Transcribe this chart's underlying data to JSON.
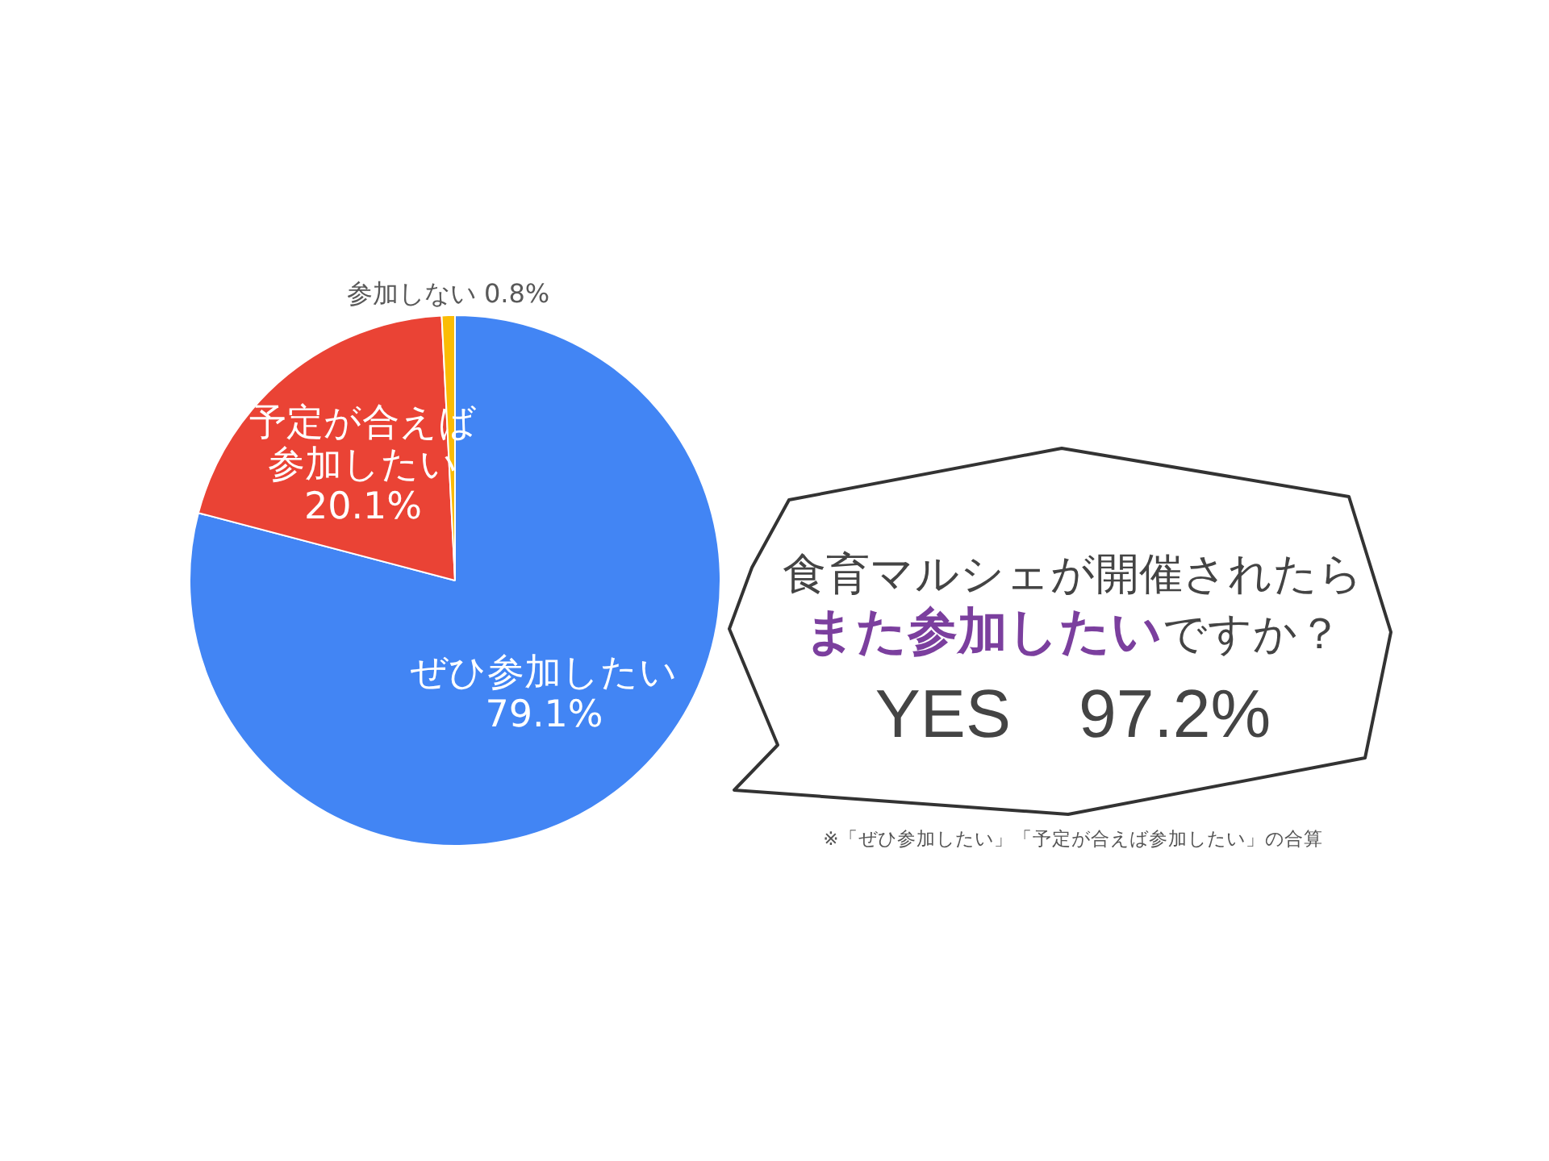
{
  "chart_data": {
    "type": "pie",
    "categories": [
      "ぜひ参加したい",
      "予定が合えば参加したい",
      "参加しない"
    ],
    "values": [
      79.1,
      20.1,
      0.8
    ],
    "colors": [
      "#4285f4",
      "#ea4335",
      "#fbbc04"
    ],
    "value_labels": [
      "79.1%",
      "20.1%",
      "0.8%"
    ],
    "annotations": [
      "食育マルシェが開催されたら",
      "また参加したい",
      "ですか？",
      "YES　97.2%",
      "※「ぜひ参加したい」「予定が合えば参加したい」の合算"
    ]
  }
}
